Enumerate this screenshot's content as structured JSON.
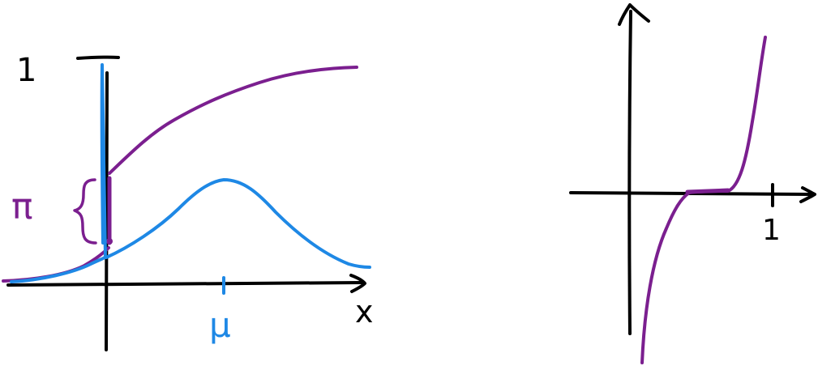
{
  "left_sketch": {
    "y_tick_label": "1",
    "x_axis_label": "x",
    "jump_label": "π",
    "mean_label": "μ",
    "curves": [
      {
        "name": "cdf",
        "color": "#7b1f8f"
      },
      {
        "name": "pdf",
        "color": "#1e88e5"
      }
    ]
  },
  "right_sketch": {
    "x_tick_label": "1",
    "curves": [
      {
        "name": "quantile",
        "color": "#7b1f8f"
      }
    ]
  },
  "colors": {
    "ink": "#000000",
    "purple": "#7b1f8f",
    "blue": "#1e88e5"
  }
}
